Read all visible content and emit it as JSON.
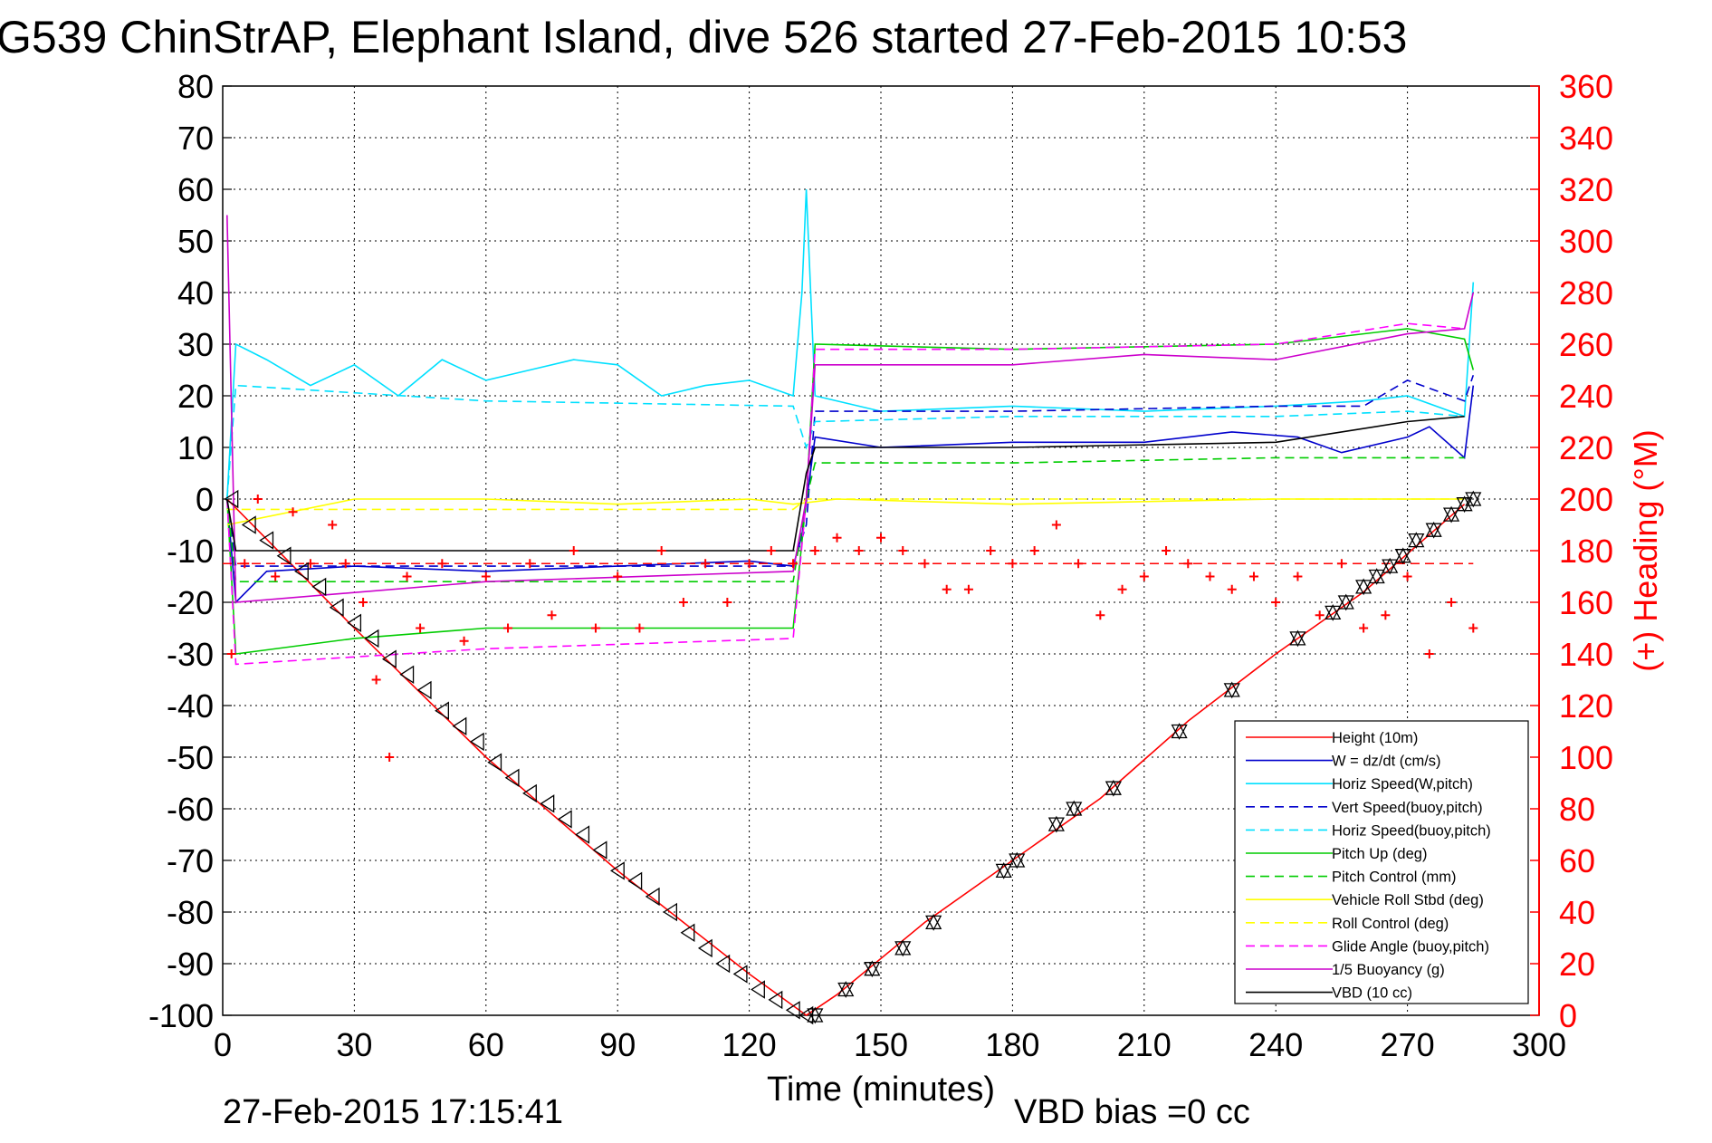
{
  "figure": {
    "title": "G539 ChinStrAP, Elephant Island, dive 526 started 27-Feb-2015 10:53",
    "timestamp": "27-Feb-2015 17:15:41",
    "vbd_bias": "VBD bias =0 cc"
  },
  "chart_data": {
    "type": "line",
    "title": "G539 ChinStrAP, Elephant Island, dive 526 started 27-Feb-2015 10:53",
    "xlabel": "Time (minutes)",
    "ylabel": "",
    "y2label": "(+) Heading (°M)",
    "xlim": [
      0,
      300
    ],
    "ylim": [
      -100,
      80
    ],
    "y2lim": [
      0,
      360
    ],
    "xticks": [
      0,
      30,
      60,
      90,
      120,
      150,
      180,
      210,
      240,
      270,
      300
    ],
    "yticks": [
      80,
      70,
      60,
      50,
      40,
      30,
      20,
      10,
      0,
      -10,
      -20,
      -30,
      -40,
      -50,
      -60,
      -70,
      -80,
      -90,
      -100
    ],
    "y2ticks": [
      360,
      340,
      320,
      300,
      280,
      260,
      240,
      220,
      200,
      180,
      160,
      140,
      120,
      100,
      80,
      60,
      40,
      20,
      0
    ],
    "grid": true,
    "legend_position": "bottom-right",
    "series": [
      {
        "name": "Height (10m)",
        "color": "#ff0000",
        "style": "solid",
        "x": [
          1,
          30,
          60,
          90,
          120,
          133,
          140,
          160,
          180,
          200,
          220,
          240,
          260,
          283
        ],
        "y": [
          0,
          -25,
          -50,
          -72,
          -92,
          -100,
          -96,
          -82,
          -70,
          -58,
          -43,
          -30,
          -18,
          -1
        ]
      },
      {
        "name": "W = dz/dt (cm/s)",
        "color": "#0000cc",
        "style": "solid",
        "x": [
          1,
          3,
          10,
          30,
          60,
          90,
          120,
          130,
          132,
          135,
          150,
          180,
          210,
          230,
          245,
          255,
          270,
          275,
          283,
          285
        ],
        "y": [
          0,
          -20,
          -14,
          -13,
          -14,
          -13,
          -12,
          -13,
          -7,
          12,
          10,
          11,
          11,
          13,
          12,
          9,
          12,
          14,
          8,
          22
        ]
      },
      {
        "name": "Horiz Speed(W,pitch)",
        "color": "#00e0ff",
        "style": "solid",
        "x": [
          1,
          3,
          10,
          20,
          30,
          40,
          50,
          60,
          70,
          80,
          90,
          100,
          110,
          120,
          130,
          132,
          133,
          135,
          150,
          180,
          210,
          240,
          260,
          270,
          283,
          285
        ],
        "y": [
          0,
          30,
          27,
          22,
          26,
          20,
          27,
          23,
          25,
          27,
          26,
          20,
          22,
          23,
          20,
          40,
          60,
          20,
          17,
          18,
          17,
          18,
          19,
          20,
          16,
          42
        ]
      },
      {
        "name": "Vert Speed(buoy,pitch)",
        "color": "#0000cc",
        "style": "dashed",
        "x": [
          1,
          3,
          130,
          133,
          135,
          180,
          240,
          260,
          270,
          283,
          285
        ],
        "y": [
          0,
          -13,
          -13,
          -5,
          17,
          17,
          18,
          18,
          23,
          19,
          24
        ]
      },
      {
        "name": "Horiz Speed(buoy,pitch)",
        "color": "#00e0ff",
        "style": "dashed",
        "x": [
          1,
          3,
          60,
          130,
          133,
          135,
          180,
          240,
          270,
          283
        ],
        "y": [
          0,
          22,
          19,
          18,
          10,
          15,
          16,
          16,
          17,
          16
        ]
      },
      {
        "name": "Pitch Up (deg)",
        "color": "#00cc00",
        "style": "solid",
        "x": [
          1,
          3,
          30,
          60,
          90,
          130,
          133,
          135,
          180,
          240,
          270,
          283,
          285
        ],
        "y": [
          0,
          -30,
          -27,
          -25,
          -25,
          -25,
          0,
          30,
          29,
          30,
          33,
          31,
          25
        ]
      },
      {
        "name": "Pitch Control (mm)",
        "color": "#00cc00",
        "style": "dashed",
        "x": [
          1,
          3,
          130,
          133,
          135,
          180,
          240,
          270,
          283
        ],
        "y": [
          0,
          -16,
          -16,
          0,
          7,
          7,
          8,
          8,
          8
        ]
      },
      {
        "name": "Vehicle Roll Stbd (deg)",
        "color": "#ffff00",
        "style": "solid",
        "x": [
          1,
          30,
          60,
          90,
          120,
          130,
          140,
          180,
          240,
          270,
          283
        ],
        "y": [
          -5,
          0,
          0,
          -1,
          0,
          -1,
          0,
          -1,
          0,
          0,
          0
        ]
      },
      {
        "name": "Roll Control (deg)",
        "color": "#ffff00",
        "style": "dashed",
        "x": [
          1,
          130,
          133,
          283
        ],
        "y": [
          -2,
          -2,
          0,
          0
        ]
      },
      {
        "name": "Glide Angle (buoy,pitch)",
        "color": "#ff00ff",
        "style": "dashed",
        "x": [
          1,
          3,
          60,
          130,
          133,
          135,
          180,
          240,
          270,
          283
        ],
        "y": [
          0,
          -32,
          -29,
          -27,
          0,
          29,
          29,
          30,
          34,
          33
        ]
      },
      {
        "name": "1/5 Buoyancy (g)",
        "color": "#cc00cc",
        "style": "solid",
        "x": [
          1,
          3,
          60,
          130,
          133,
          135,
          180,
          210,
          240,
          270,
          283,
          285
        ],
        "y": [
          55,
          -20,
          -16,
          -14,
          0,
          26,
          26,
          28,
          27,
          32,
          33,
          40
        ]
      },
      {
        "name": "VBD (10 cc)",
        "color": "#000000",
        "style": "solid",
        "x": [
          1,
          3,
          130,
          133,
          135,
          180,
          240,
          270,
          283
        ],
        "y": [
          0,
          -10,
          -10,
          5,
          10,
          10,
          11,
          15,
          16
        ]
      }
    ],
    "heading_series": {
      "name": "Heading",
      "color": "#ff0000",
      "marker": "+",
      "axis": "right",
      "x": [
        2,
        5,
        8,
        12,
        16,
        20,
        25,
        28,
        32,
        35,
        38,
        42,
        45,
        50,
        55,
        60,
        65,
        70,
        75,
        80,
        85,
        90,
        95,
        100,
        105,
        110,
        115,
        120,
        125,
        130,
        135,
        140,
        145,
        150,
        155,
        160,
        165,
        170,
        175,
        180,
        185,
        190,
        195,
        200,
        205,
        210,
        215,
        220,
        225,
        230,
        235,
        240,
        245,
        250,
        255,
        260,
        265,
        270,
        275,
        280,
        285
      ],
      "y": [
        140,
        175,
        200,
        170,
        195,
        175,
        190,
        175,
        160,
        130,
        100,
        170,
        150,
        175,
        145,
        170,
        150,
        175,
        155,
        180,
        150,
        170,
        150,
        180,
        160,
        175,
        160,
        175,
        180,
        175,
        180,
        185,
        180,
        185,
        180,
        175,
        165,
        165,
        180,
        175,
        180,
        190,
        175,
        155,
        165,
        170,
        180,
        175,
        170,
        165,
        170,
        160,
        170,
        155,
        175,
        150,
        155,
        170,
        140,
        160,
        150
      ]
    },
    "heading_ref": {
      "name": "",
      "color": "#ff0000",
      "style": "dashed",
      "y": 175,
      "axis": "right"
    },
    "depth_markers": {
      "descent": {
        "marker": "triangle-left",
        "x": [
          2,
          6,
          10,
          14,
          18,
          22,
          26,
          30,
          34,
          38,
          42,
          46,
          50,
          54,
          58,
          62,
          66,
          70,
          74,
          78,
          82,
          86,
          90,
          94,
          98,
          102,
          106,
          110,
          114,
          118,
          122,
          126,
          130,
          133
        ],
        "y": [
          0,
          -5,
          -8,
          -11,
          -14,
          -17,
          -21,
          -24,
          -27,
          -31,
          -34,
          -37,
          -41,
          -44,
          -47,
          -51,
          -54,
          -57,
          -59,
          -62,
          -65,
          -68,
          -72,
          -74,
          -77,
          -80,
          -84,
          -87,
          -90,
          -92,
          -95,
          -97,
          -99,
          -100
        ]
      },
      "ascent": {
        "marker": "triangle-up",
        "x": [
          135,
          142,
          148,
          155,
          162,
          178,
          181,
          190,
          194,
          203,
          218,
          230,
          245,
          253,
          256,
          260,
          263,
          266,
          269,
          272,
          276,
          280,
          283,
          285
        ],
        "y": [
          -100,
          -95,
          -91,
          -87,
          -82,
          -72,
          -70,
          -63,
          -60,
          -56,
          -45,
          -37,
          -27,
          -22,
          -20,
          -17,
          -15,
          -13,
          -11,
          -8,
          -6,
          -3,
          -1,
          0
        ]
      }
    }
  }
}
